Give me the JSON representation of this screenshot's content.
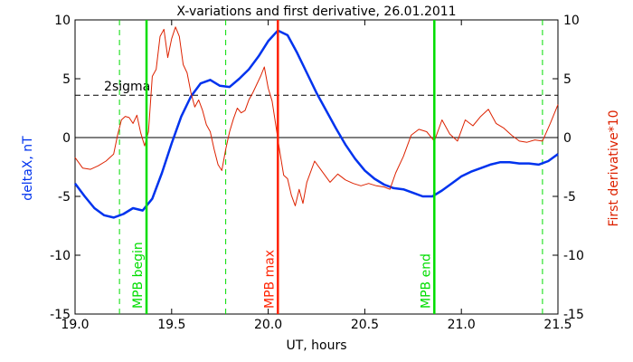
{
  "chart_data": {
    "type": "line",
    "title": "X-variations and first derivative, 26.01.2011",
    "xlabel": "UT, hours",
    "ylabel_left": "deltaX, nT",
    "ylabel_right": "First derivative*10",
    "xlim": [
      19.0,
      21.5
    ],
    "ylim": [
      -15,
      10
    ],
    "x_ticks": [
      "19.0",
      "19.5",
      "20.0",
      "20.5",
      "21.0",
      "21.5"
    ],
    "x_tick_values": [
      19.0,
      19.5,
      20.0,
      20.5,
      21.0,
      21.5
    ],
    "y_ticks_left": [
      "-15",
      "-10",
      "-5",
      "0",
      "5",
      "10"
    ],
    "y_ticks_right": [
      "-15",
      "-10",
      "-5",
      "0",
      "5",
      "10"
    ],
    "y_tick_values": [
      -15,
      -10,
      -5,
      0,
      5,
      10
    ],
    "threshold": {
      "label": "2sigma",
      "value": 3.6
    },
    "zero_line": 0,
    "markers": [
      {
        "label": "MPB begin",
        "x": 19.37,
        "color": "#00dd00",
        "style": "solid"
      },
      {
        "label": "MPB max",
        "x": 20.05,
        "color": "#ff2200",
        "style": "solid"
      },
      {
        "label": "MPB end",
        "x": 20.86,
        "color": "#00dd00",
        "style": "solid"
      }
    ],
    "dashed_markers": [
      19.23,
      19.78,
      21.42
    ],
    "series": [
      {
        "axis": "left",
        "color": "#0033ee",
        "x": [
          19.0,
          19.05,
          19.1,
          19.15,
          19.2,
          19.25,
          19.3,
          19.35,
          19.4,
          19.45,
          19.5,
          19.55,
          19.6,
          19.65,
          19.7,
          19.75,
          19.8,
          19.85,
          19.9,
          19.95,
          20.0,
          20.05,
          20.1,
          20.15,
          20.2,
          20.25,
          20.3,
          20.35,
          20.4,
          20.45,
          20.5,
          20.55,
          20.6,
          20.65,
          20.7,
          20.75,
          20.8,
          20.85,
          20.9,
          20.95,
          21.0,
          21.05,
          21.1,
          21.15,
          21.2,
          21.25,
          21.3,
          21.35,
          21.4,
          21.45,
          21.5
        ],
        "values": [
          -3.9,
          -5.0,
          -6.0,
          -6.6,
          -6.8,
          -6.5,
          -6.0,
          -6.2,
          -5.2,
          -3.0,
          -0.5,
          1.8,
          3.5,
          4.6,
          4.9,
          4.4,
          4.3,
          5.0,
          5.8,
          6.9,
          8.2,
          9.1,
          8.7,
          7.2,
          5.5,
          3.8,
          2.3,
          0.8,
          -0.6,
          -1.8,
          -2.8,
          -3.5,
          -4.0,
          -4.3,
          -4.4,
          -4.7,
          -5.0,
          -5.0,
          -4.5,
          -3.9,
          -3.3,
          -2.9,
          -2.6,
          -2.3,
          -2.1,
          -2.1,
          -2.2,
          -2.2,
          -2.3,
          -2.0,
          -1.4
        ]
      },
      {
        "axis": "right",
        "color": "#dd2200",
        "x": [
          19.0,
          19.04,
          19.08,
          19.12,
          19.16,
          19.2,
          19.22,
          19.24,
          19.26,
          19.28,
          19.3,
          19.32,
          19.34,
          19.36,
          19.38,
          19.4,
          19.42,
          19.44,
          19.46,
          19.48,
          19.5,
          19.52,
          19.54,
          19.56,
          19.58,
          19.6,
          19.62,
          19.64,
          19.66,
          19.68,
          19.7,
          19.72,
          19.74,
          19.76,
          19.78,
          19.8,
          19.82,
          19.84,
          19.86,
          19.88,
          19.9,
          19.92,
          19.94,
          19.96,
          19.98,
          20.0,
          20.02,
          20.04,
          20.06,
          20.08,
          20.1,
          20.12,
          20.14,
          20.16,
          20.18,
          20.2,
          20.24,
          20.28,
          20.32,
          20.36,
          20.4,
          20.44,
          20.48,
          20.52,
          20.56,
          20.6,
          20.63,
          20.66,
          20.7,
          20.74,
          20.78,
          20.82,
          20.86,
          20.9,
          20.94,
          20.98,
          21.02,
          21.06,
          21.1,
          21.14,
          21.18,
          21.22,
          21.26,
          21.3,
          21.34,
          21.38,
          21.42,
          21.46,
          21.5
        ],
        "values": [
          -1.7,
          -2.6,
          -2.7,
          -2.4,
          -2.0,
          -1.4,
          0.2,
          1.5,
          1.8,
          1.7,
          1.2,
          1.9,
          0.4,
          -0.7,
          0.5,
          5.2,
          5.8,
          8.6,
          9.2,
          6.8,
          8.4,
          9.4,
          8.6,
          6.2,
          5.5,
          3.8,
          2.6,
          3.2,
          2.3,
          1.1,
          0.5,
          -1.0,
          -2.3,
          -2.8,
          -1.0,
          0.5,
          1.6,
          2.5,
          2.1,
          2.3,
          3.2,
          3.8,
          4.5,
          5.2,
          6.0,
          4.2,
          3.1,
          1.0,
          -1.2,
          -3.2,
          -3.5,
          -4.9,
          -5.8,
          -4.4,
          -5.6,
          -3.8,
          -2.0,
          -2.9,
          -3.8,
          -3.1,
          -3.6,
          -3.9,
          -4.1,
          -3.9,
          -4.1,
          -4.2,
          -4.4,
          -3.0,
          -1.6,
          0.2,
          0.7,
          0.5,
          -0.3,
          1.5,
          0.3,
          -0.3,
          1.5,
          1.0,
          1.8,
          2.4,
          1.2,
          0.8,
          0.2,
          -0.3,
          -0.4,
          -0.2,
          -0.3,
          1.2,
          2.8
        ]
      }
    ]
  }
}
